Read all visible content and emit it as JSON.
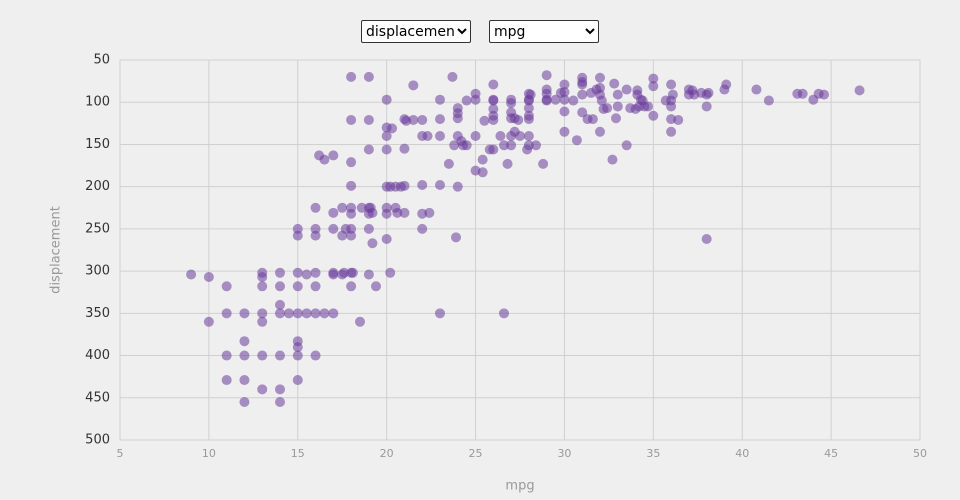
{
  "controls": {
    "y_select": "displacement",
    "x_select": "mpg"
  },
  "chart_data": {
    "type": "scatter",
    "x_label": "mpg",
    "y_label": "displacement",
    "color": "#6a3d9a",
    "grid": true,
    "xlim": [
      5,
      50
    ],
    "xticks": [
      5,
      10,
      15,
      20,
      25,
      30,
      35,
      40,
      45,
      50
    ],
    "ylim": [
      500,
      50
    ],
    "yticks": [
      500,
      450,
      400,
      350,
      300,
      250,
      200,
      150,
      100,
      50
    ],
    "x": [
      9,
      10,
      10,
      11,
      11,
      11,
      11,
      12,
      12,
      12,
      12,
      12,
      13,
      13,
      13,
      13,
      13,
      13,
      13,
      14,
      14,
      14,
      14,
      14,
      14,
      14,
      14.5,
      15,
      15,
      15,
      15,
      15,
      15,
      15,
      15,
      15,
      15.5,
      15.5,
      16,
      16,
      16,
      16,
      16,
      16,
      16,
      16.2,
      16.5,
      16.5,
      17,
      17,
      17,
      17,
      17,
      17,
      17.5,
      17.5,
      17.5,
      17.6,
      17.7,
      18,
      18,
      18,
      18,
      18,
      18,
      18,
      18,
      18,
      18,
      18.1,
      18.5,
      18.6,
      19,
      19,
      19,
      19,
      19,
      19,
      19.1,
      19.2,
      19.2,
      19.4,
      19,
      20,
      20,
      20,
      20,
      20,
      20,
      20,
      20,
      20.2,
      20.2,
      20.3,
      20.5,
      20.5,
      20.6,
      20.8,
      21,
      21,
      21,
      21,
      21.1,
      21.5,
      21.5,
      22,
      22,
      22,
      22,
      22,
      22.3,
      22.4,
      23,
      23,
      23,
      23,
      23,
      23.5,
      23.7,
      23.8,
      23.9,
      24,
      24,
      24,
      24,
      24,
      24.2,
      24.3,
      24.5,
      24.5,
      25,
      25,
      25,
      25,
      25.4,
      25.4,
      25.5,
      25.8,
      26,
      26,
      26,
      26,
      26,
      26,
      26,
      26.4,
      26.6,
      26.6,
      26.8,
      27,
      27,
      27,
      27,
      27,
      27,
      27.2,
      27.2,
      27.4,
      27.5,
      27.9,
      28,
      28,
      28,
      28,
      28,
      28,
      28,
      28,
      28.1,
      28.4,
      28.8,
      29,
      29,
      29,
      29,
      29,
      29.5,
      29.8,
      30,
      30,
      30,
      30,
      30,
      30.5,
      30.7,
      31,
      31,
      31,
      31,
      31,
      31.3,
      31.5,
      31.6,
      31.8,
      32,
      32,
      32,
      32,
      32.1,
      32.2,
      32.4,
      32.7,
      32.8,
      32.9,
      33,
      33,
      33.5,
      33.5,
      33.7,
      34,
      34.1,
      34.1,
      34.2,
      34.3,
      34.4,
      34.5,
      34.7,
      35,
      35,
      35,
      35.7,
      36,
      36,
      36,
      36,
      36,
      36.1,
      36.4,
      37,
      37,
      37.2,
      37.3,
      37.7,
      38,
      38,
      38,
      38.1,
      39,
      39.1,
      40.8,
      41.5,
      43.1,
      43.4,
      44,
      44.3,
      44.6,
      46.6
    ],
    "values": [
      304,
      307,
      360,
      318,
      350,
      400,
      429,
      350,
      383,
      400,
      429,
      455,
      302,
      307,
      318,
      350,
      360,
      400,
      440,
      302,
      318,
      340,
      350,
      400,
      440,
      455,
      350,
      250,
      258,
      302,
      318,
      350,
      383,
      390,
      400,
      429,
      304,
      350,
      225,
      250,
      258,
      302,
      318,
      350,
      400,
      163,
      168,
      350,
      231,
      250,
      302,
      163,
      304,
      350,
      225,
      258,
      304,
      302,
      250,
      70,
      121,
      171,
      199,
      225,
      232,
      250,
      258,
      302,
      318,
      302,
      360,
      225,
      70,
      121,
      156,
      225,
      232,
      250,
      225,
      231,
      267,
      318,
      304,
      97,
      130,
      140,
      156,
      200,
      225,
      232,
      262,
      200,
      302,
      131,
      200,
      225,
      231,
      200,
      120,
      155,
      199,
      231,
      122,
      80,
      121,
      121,
      140,
      198,
      232,
      250,
      140,
      231,
      97,
      120,
      140,
      198,
      350,
      173,
      70,
      151,
      260,
      107,
      113,
      119,
      140,
      200,
      146,
      151,
      98,
      151,
      90,
      97,
      140,
      181,
      183,
      168,
      122,
      156,
      79,
      97,
      98,
      108,
      116,
      121,
      156,
      140,
      151,
      350,
      173,
      97,
      101,
      112,
      119,
      140,
      151,
      119,
      135,
      121,
      140,
      156,
      90,
      97,
      98,
      107,
      116,
      120,
      140,
      151,
      91,
      151,
      173,
      68,
      85,
      90,
      97,
      98,
      97,
      89,
      79,
      88,
      97,
      111,
      135,
      98,
      145,
      71,
      76,
      79,
      91,
      112,
      120,
      89,
      120,
      85,
      71,
      83,
      91,
      135,
      98,
      108,
      107,
      168,
      78,
      119,
      91,
      105,
      85,
      151,
      107,
      108,
      86,
      91,
      105,
      97,
      98,
      105,
      105,
      72,
      81,
      116,
      98,
      79,
      98,
      105,
      120,
      135,
      91,
      121,
      85,
      91,
      86,
      91,
      89,
      91,
      105,
      262,
      89,
      85,
      79,
      85,
      98,
      90,
      90,
      97,
      90,
      91,
      86
    ]
  }
}
